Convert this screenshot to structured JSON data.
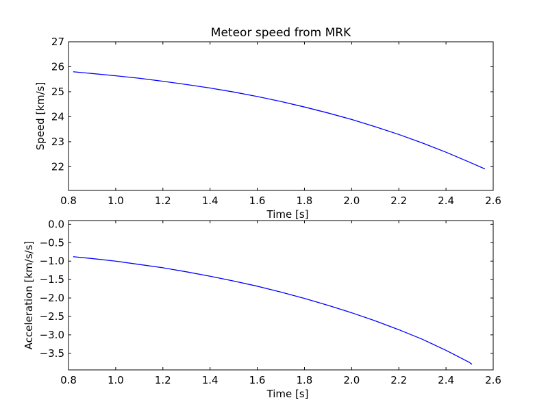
{
  "figure": {
    "title": "Meteor speed from  MRK"
  },
  "chart_data": [
    {
      "type": "line",
      "title": "Meteor speed from  MRK",
      "xlabel": "Time [s]",
      "ylabel": "Speed [km/s]",
      "xlim": [
        0.8,
        2.6
      ],
      "ylim": [
        21.05,
        27.0
      ],
      "xticks": [
        "0.8",
        "1.0",
        "1.2",
        "1.4",
        "1.6",
        "1.8",
        "2.0",
        "2.2",
        "2.4",
        "2.6"
      ],
      "yticks": [
        "22",
        "23",
        "24",
        "25",
        "26",
        "27"
      ],
      "grid": false,
      "series": [
        {
          "color": "#0000ff",
          "x": [
            0.82,
            0.9,
            1.0,
            1.1,
            1.2,
            1.3,
            1.4,
            1.5,
            1.6,
            1.7,
            1.8,
            1.9,
            2.0,
            2.1,
            2.2,
            2.3,
            2.4,
            2.5,
            2.565
          ],
          "y": [
            25.8,
            25.73,
            25.64,
            25.54,
            25.42,
            25.29,
            25.15,
            24.99,
            24.81,
            24.61,
            24.39,
            24.15,
            23.89,
            23.6,
            23.29,
            22.95,
            22.58,
            22.18,
            21.91
          ]
        }
      ]
    },
    {
      "type": "line",
      "title": "",
      "xlabel": "Time [s]",
      "ylabel": "Acceleration [km/s/s]",
      "xlim": [
        0.8,
        2.6
      ],
      "ylim": [
        -3.95,
        0.1
      ],
      "xticks": [
        "0.8",
        "1.0",
        "1.2",
        "1.4",
        "1.6",
        "1.8",
        "2.0",
        "2.2",
        "2.4",
        "2.6"
      ],
      "yticks": [
        "0.0",
        "−0.5",
        "−1.0",
        "−1.5",
        "−2.0",
        "−2.5",
        "−3.0",
        "−3.5"
      ],
      "grid": false,
      "series": [
        {
          "color": "#0000ff",
          "x": [
            0.82,
            0.9,
            1.0,
            1.1,
            1.2,
            1.3,
            1.4,
            1.5,
            1.6,
            1.7,
            1.8,
            1.9,
            2.0,
            2.1,
            2.2,
            2.3,
            2.4,
            2.5,
            2.51
          ],
          "y": [
            -0.88,
            -0.93,
            -1.0,
            -1.09,
            -1.18,
            -1.29,
            -1.41,
            -1.54,
            -1.68,
            -1.84,
            -2.01,
            -2.2,
            -2.4,
            -2.62,
            -2.86,
            -3.12,
            -3.42,
            -3.75,
            -3.8
          ]
        }
      ]
    }
  ]
}
